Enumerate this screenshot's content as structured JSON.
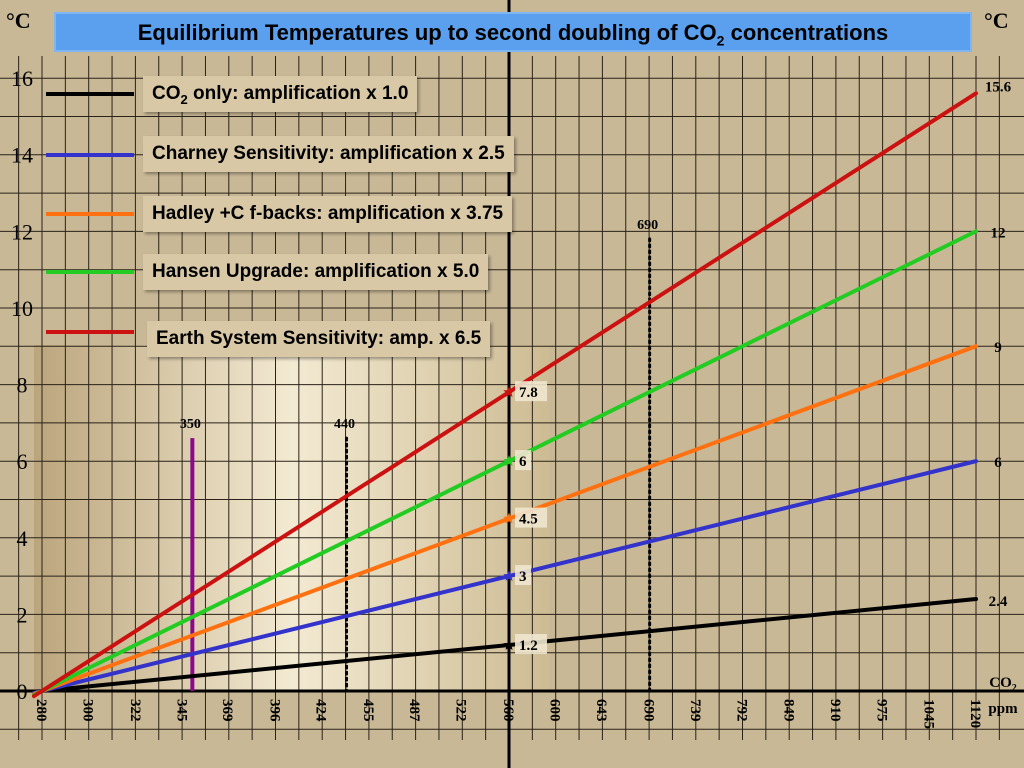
{
  "title_main": "Equilibrium Temperatures up to second doubling of CO",
  "title_sub": "2",
  "title_end": " concentrations",
  "y_unit_left": "°C",
  "y_unit_right": "°C",
  "x_unit_line1": "CO",
  "x_unit_sub": "2",
  "x_unit_line2": "ppm",
  "legend": [
    {
      "label_main": "CO",
      "label_sub": "2",
      "label_end": " only: amplification x 1.0",
      "color": "#000000"
    },
    {
      "label_main": "Charney Sensitivity: amplification x 2.5",
      "label_sub": "",
      "label_end": "",
      "color": "#3333cc"
    },
    {
      "label_main": "Hadley +C f-backs: amplification x 3.75",
      "label_sub": "",
      "label_end": "",
      "color": "#ff7010"
    },
    {
      "label_main": "Hansen Upgrade: amplification x 5.0",
      "label_sub": "",
      "label_end": "",
      "color": "#22cc22"
    },
    {
      "label_main": "Earth System Sensitivity: amp. x 6.5",
      "label_sub": "",
      "label_end": "",
      "color": "#cc1111"
    }
  ],
  "chart_data": {
    "type": "line",
    "x_axis_scale": "log (CO2 concentration, ppm)",
    "x_tick_labels": [
      "280",
      "300",
      "322",
      "345",
      "369",
      "396",
      "424",
      "455",
      "487",
      "522",
      "560",
      "600",
      "643",
      "690",
      "739",
      "792",
      "849",
      "910",
      "975",
      "1045",
      "1120"
    ],
    "y_tick_labels": [
      "0",
      "2",
      "4",
      "6",
      "8",
      "10",
      "12",
      "14",
      "16"
    ],
    "ylim": [
      0,
      16
    ],
    "grid": true,
    "series": [
      {
        "name": "CO2 only: amplification x 1.0",
        "color": "#000000",
        "x": [
          280,
          560,
          1120
        ],
        "y": [
          0,
          1.2,
          2.4
        ],
        "marker_label": "1.2",
        "end_label": "2.4"
      },
      {
        "name": "Charney Sensitivity: amplification x 2.5",
        "color": "#3333cc",
        "x": [
          280,
          560,
          1120
        ],
        "y": [
          0,
          3,
          6
        ],
        "marker_label": "3",
        "end_label": "6"
      },
      {
        "name": "Hadley +C f-backs: amplification x 3.75",
        "color": "#ff7010",
        "x": [
          280,
          560,
          1120
        ],
        "y": [
          0,
          4.5,
          9
        ],
        "marker_label": "4.5",
        "end_label": "9"
      },
      {
        "name": "Hansen Upgrade: amplification x 5.0",
        "color": "#22cc22",
        "x": [
          280,
          560,
          1120
        ],
        "y": [
          0,
          6,
          12
        ],
        "marker_label": "6",
        "end_label": "12"
      },
      {
        "name": "Earth System Sensitivity: amp. x 6.5",
        "color": "#cc1111",
        "x": [
          280,
          560,
          1120
        ],
        "y": [
          0,
          7.8,
          15.6
        ],
        "marker_label": "7.8",
        "end_label": "15.6"
      }
    ],
    "reference_lines": [
      {
        "label": "350",
        "x": 350,
        "y_top": 6.6,
        "style": "solid",
        "color": "#8b0a8b"
      },
      {
        "label": "440",
        "x": 440,
        "y_top": 6.6,
        "style": "dotted",
        "color": "#000000"
      },
      {
        "label": "690",
        "x": 690,
        "y_top": 11.8,
        "style": "dotted",
        "color": "#000000"
      }
    ],
    "doubling_marker_x": 560
  }
}
